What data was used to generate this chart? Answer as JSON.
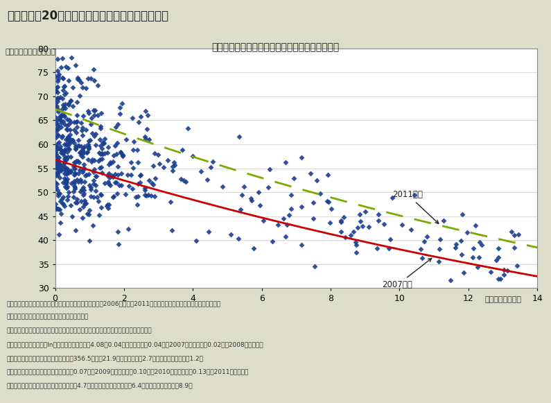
{
  "title_main": "第３－２－20図　地域金融機関の営業コスト比率",
  "title_sub": "営業コスト比率のばらつきが大きい地域金融機関",
  "ylabel": "（営業コスト比率、％）",
  "xlabel": "（総資産、兆円）",
  "xlim": [
    0,
    14
  ],
  "ylim": [
    30,
    80
  ],
  "xticks": [
    0,
    2,
    4,
    6,
    8,
    10,
    12,
    14
  ],
  "yticks": [
    30,
    35,
    40,
    45,
    50,
    55,
    60,
    65,
    70,
    75,
    80
  ],
  "bg_color_outer": "#dddeca",
  "bg_color_plot": "#ffffff",
  "scatter_color": "#1a3f8f",
  "line2007_color": "#cc0000",
  "line2011_color": "#7aab00",
  "intercept_base": 4.08,
  "slope": -0.04,
  "dummy_2007": -0.04,
  "dummy_2011": 0.13,
  "label_2007": "2007年度",
  "label_2011": "2011年度",
  "note_line1": "（備考）１．全国銀行協会「貸借対照表・損益計算書」の2006年度から2011年度における地方銀行及び第二地方銀行の",
  "note_line2": "　　　　　　単体ベースの財務諸表を基に作成。",
  "note_line3": "　　　　２．営業コスト比率＝営業経費／（経常収益－その他経常収益）として算出。",
  "note_line4": "　　　　３．近似曲線：ln（営業コスト比率）＝4.08－0.04＊（総資産）－0.04＊（2007年ダミー）＋0.02＊（2008年ダミー）",
  "note_line5": "　　　　　　　　　　　　　　　　　（356.5）（－21.9）　　　　（－2.7）　　　　　　　　（1.2）",
  "note_line6": "　　　　　　　　　　　　　　　　　＋0.07＊（2009年ダミー）＋0.10＊（2010年ダミー）＋0.13＊（2011年ダミー）",
  "note_line7": "　　　　　　　　　　　　　　　　　　（4.7）　　　　　　　　　　（6.4）　　　　　　　　（8.9）",
  "scatter_seed": 42,
  "n_points": 600
}
